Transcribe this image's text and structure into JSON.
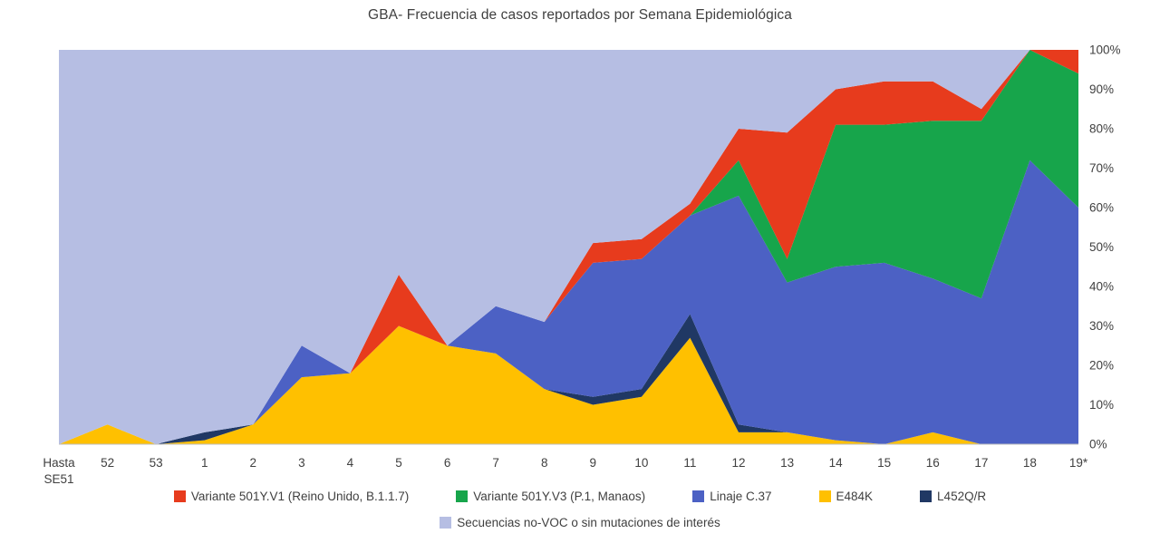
{
  "title": "GBA- Frecuencia de casos reportados por Semana Epidemiológica",
  "colors": {
    "red": "#E73B1D",
    "green": "#17A54B",
    "blue": "#4C61C4",
    "yellow": "#FFC000",
    "navy": "#203864",
    "lavender": "#B6BEE3",
    "axis_text": "#404040",
    "axis_line": "#BFBFBF"
  },
  "y_axis": {
    "ticks": [
      "0%",
      "10%",
      "20%",
      "30%",
      "40%",
      "50%",
      "60%",
      "70%",
      "80%",
      "90%",
      "100%"
    ]
  },
  "x_axis": {
    "labels": [
      "Hasta SE51",
      "52",
      "53",
      "1",
      "2",
      "3",
      "4",
      "5",
      "6",
      "7",
      "8",
      "9",
      "10",
      "11",
      "12",
      "13",
      "14",
      "15",
      "16",
      "17",
      "18",
      "19*"
    ]
  },
  "legend": {
    "row1": [
      {
        "label": "Variante 501Y.V1 (Reino Unido, B.1.1.7)",
        "color": "#E73B1D"
      },
      {
        "label": "Variante 501Y.V3 (P.1, Manaos)",
        "color": "#17A54B"
      },
      {
        "label": "Linaje C.37",
        "color": "#4C61C4"
      },
      {
        "label": "E484K",
        "color": "#FFC000"
      },
      {
        "label": "L452Q/R",
        "color": "#203864"
      }
    ],
    "row2": [
      {
        "label": "Secuencias no-VOC o sin mutaciones de interés",
        "color": "#B6BEE3"
      }
    ]
  },
  "chart_data": {
    "type": "area",
    "stacked": true,
    "units": "percent",
    "title": "GBA- Frecuencia de casos reportados por Semana Epidemiológica",
    "xlabel": "Semana Epidemiológica",
    "ylabel": "",
    "ylim": [
      0,
      100
    ],
    "grid": false,
    "legend_position": "bottom",
    "y_axis_side": "right",
    "stack_order": "bottom_to_top",
    "categories": [
      "Hasta SE51",
      "52",
      "53",
      "1",
      "2",
      "3",
      "4",
      "5",
      "6",
      "7",
      "8",
      "9",
      "10",
      "11",
      "12",
      "13",
      "14",
      "15",
      "16",
      "17",
      "18",
      "19*"
    ],
    "series": [
      {
        "name": "E484K",
        "color": "#FFC000",
        "values": [
          0,
          5,
          0,
          1,
          5,
          17,
          18,
          30,
          25,
          23,
          14,
          10,
          12,
          27,
          3,
          3,
          1,
          0,
          3,
          0,
          0,
          0
        ]
      },
      {
        "name": "L452Q/R",
        "color": "#203864",
        "values": [
          0,
          0,
          0,
          2,
          0,
          0,
          0,
          0,
          0,
          0,
          0,
          2,
          2,
          6,
          2,
          0,
          0,
          0,
          0,
          0,
          0,
          0
        ]
      },
      {
        "name": "Linaje C.37",
        "color": "#4C61C4",
        "values": [
          0,
          0,
          0,
          0,
          0,
          8,
          0,
          0,
          0,
          12,
          17,
          34,
          33,
          25,
          58,
          38,
          44,
          46,
          39,
          37,
          72,
          60
        ]
      },
      {
        "name": "Variante 501Y.V3 (P.1, Manaos)",
        "color": "#17A54B",
        "values": [
          0,
          0,
          0,
          0,
          0,
          0,
          0,
          0,
          0,
          0,
          0,
          0,
          0,
          0,
          9,
          6,
          36,
          35,
          40,
          45,
          28,
          34
        ]
      },
      {
        "name": "Variante 501Y.V1 (Reino Unido, B.1.1.7)",
        "color": "#E73B1D",
        "values": [
          0,
          0,
          0,
          0,
          0,
          0,
          0,
          13,
          0,
          0,
          0,
          5,
          5,
          3,
          8,
          32,
          9,
          11,
          10,
          3,
          0,
          6
        ]
      },
      {
        "name": "Secuencias no-VOC o sin mutaciones de interés",
        "color": "#B6BEE3",
        "values": [
          100,
          95,
          100,
          97,
          95,
          75,
          82,
          57,
          75,
          65,
          69,
          49,
          48,
          39,
          20,
          21,
          10,
          8,
          8,
          15,
          0,
          0
        ]
      }
    ]
  }
}
